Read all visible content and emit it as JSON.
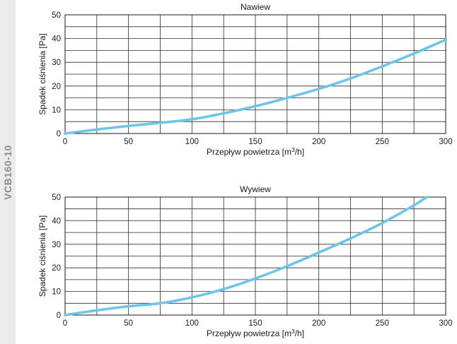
{
  "side_label": "VCB160-10",
  "chart_data": [
    {
      "type": "line",
      "title": "Nawiew",
      "xlabel": "Przepływ powietrza [m³/h]",
      "ylabel": "Spadek ciśnienia [Pa]",
      "xlim": [
        0,
        300
      ],
      "ylim": [
        0,
        50
      ],
      "xticks": [
        0,
        50,
        100,
        150,
        200,
        250,
        300
      ],
      "yticks": [
        0,
        10,
        20,
        30,
        40,
        50
      ],
      "xgrid": [
        0,
        25,
        50,
        75,
        100,
        125,
        150,
        175,
        200,
        225,
        250,
        275,
        300
      ],
      "ygrid": [
        0,
        5,
        10,
        15,
        20,
        25,
        30,
        35,
        40,
        45,
        50
      ],
      "grid": true,
      "series": [
        {
          "color": "#6ec5ea",
          "x": [
            0,
            25,
            50,
            75,
            100,
            125,
            150,
            175,
            200,
            225,
            250,
            275,
            300
          ],
          "y": [
            0,
            1.7,
            3.2,
            4.5,
            6.0,
            8.5,
            11.5,
            15.0,
            18.8,
            23.2,
            28.3,
            33.7,
            39.5
          ]
        }
      ]
    },
    {
      "type": "line",
      "title": "Wywiew",
      "xlabel": "Przepływ powietrza [m³/h]",
      "ylabel": "Spadek ciśnienia [Pa]",
      "xlim": [
        0,
        300
      ],
      "ylim": [
        0,
        50
      ],
      "xticks": [
        0,
        50,
        100,
        150,
        200,
        250,
        300
      ],
      "yticks": [
        0,
        10,
        20,
        30,
        40,
        50
      ],
      "xgrid": [
        0,
        25,
        50,
        75,
        100,
        125,
        150,
        175,
        200,
        225,
        250,
        275,
        300
      ],
      "ygrid": [
        0,
        5,
        10,
        15,
        20,
        25,
        30,
        35,
        40,
        45,
        50
      ],
      "grid": true,
      "series": [
        {
          "color": "#6ec5ea",
          "x": [
            0,
            25,
            50,
            75,
            100,
            125,
            150,
            175,
            200,
            225,
            250,
            275,
            285
          ],
          "y": [
            0,
            2.0,
            3.7,
            5.0,
            7.5,
            11.0,
            15.5,
            20.7,
            26.5,
            32.5,
            39.0,
            46.5,
            50.0
          ]
        }
      ]
    }
  ]
}
